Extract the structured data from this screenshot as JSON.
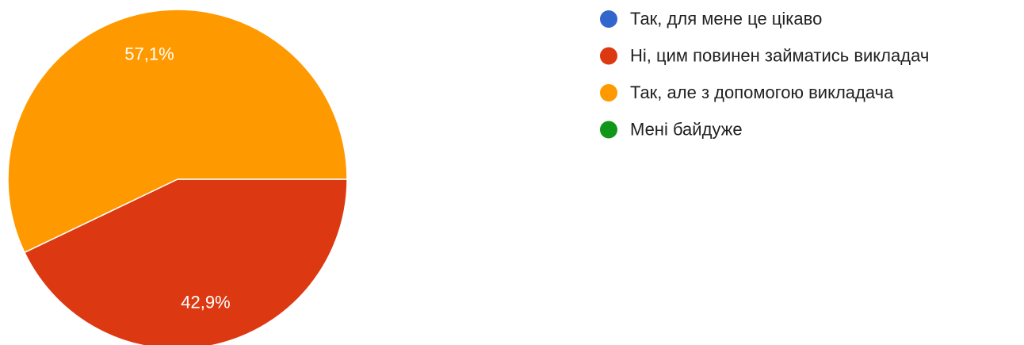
{
  "chart_data": {
    "type": "pie",
    "categories": [
      "Так, для мене це цікаво",
      "Ні, цим повинен займатись викладач",
      "Так, але з допомогою викладача",
      "Мені байдуже"
    ],
    "values": [
      0,
      42.9,
      57.1,
      0
    ],
    "value_labels": [
      null,
      "42,9%",
      "57,1%",
      null
    ],
    "colors": [
      "#3366cc",
      "#dc3912",
      "#ff9900",
      "#109618"
    ],
    "legend": "right"
  }
}
